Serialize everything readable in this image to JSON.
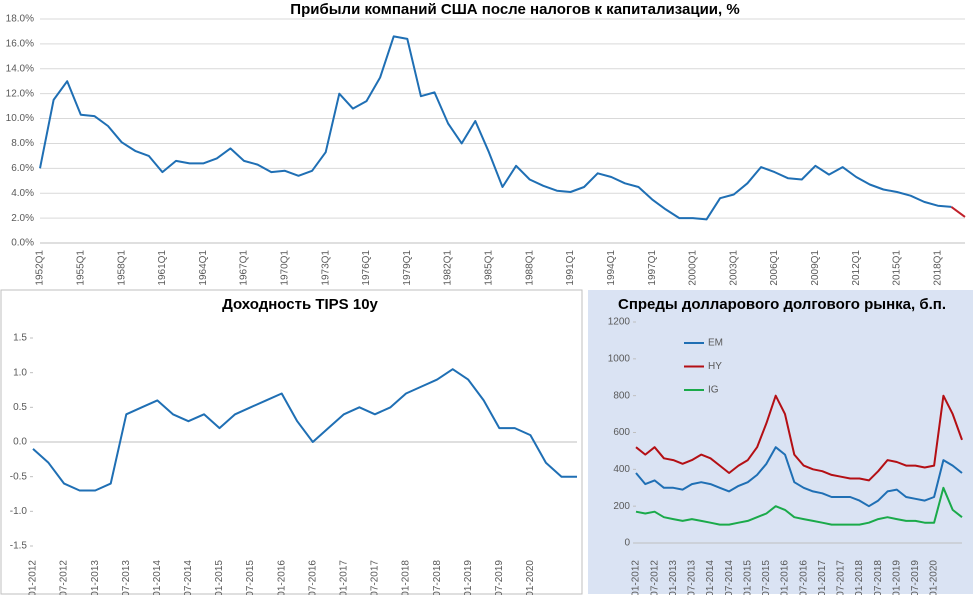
{
  "chart_data": [
    {
      "type": "line",
      "title": "Прибыли компаний США после налогов к капитализации, %",
      "categories": [
        "1952Q1",
        null,
        null,
        "1955Q1",
        null,
        null,
        "1958Q1",
        null,
        null,
        "1961Q1",
        null,
        null,
        "1964Q1",
        null,
        null,
        "1967Q1",
        null,
        null,
        "1970Q1",
        null,
        null,
        "1973Q1",
        null,
        null,
        "1976Q1",
        null,
        null,
        "1979Q1",
        null,
        null,
        "1982Q1",
        null,
        null,
        "1985Q1",
        null,
        null,
        "1988Q1",
        null,
        null,
        "1991Q1",
        null,
        null,
        "1994Q1",
        null,
        null,
        "1997Q1",
        null,
        null,
        "2000Q1",
        null,
        null,
        "2003Q1",
        null,
        null,
        "2006Q1",
        null,
        null,
        "2009Q1",
        null,
        null,
        "2012Q1",
        null,
        null,
        "2015Q1",
        null,
        null,
        "2018Q1",
        null,
        null
      ],
      "series": [
        {
          "color": "#1f6fb4",
          "values": [
            6.0,
            11.5,
            13.0,
            10.3,
            10.2,
            9.4,
            8.1,
            7.4,
            7.0,
            5.7,
            6.6,
            6.4,
            6.4,
            6.8,
            7.6,
            6.6,
            6.3,
            5.7,
            5.8,
            5.4,
            5.8,
            7.3,
            12.0,
            10.8,
            11.4,
            13.3,
            16.6,
            16.4,
            11.8,
            12.1,
            9.6,
            8.0,
            9.8,
            7.3,
            4.5,
            6.2,
            5.1,
            4.6,
            4.2,
            4.1,
            4.5,
            5.6,
            5.3,
            4.8,
            4.5,
            3.5,
            2.7,
            2.0,
            2.0,
            1.9,
            3.6,
            3.9,
            4.8,
            6.1,
            5.7,
            5.2,
            5.1,
            6.2,
            5.5,
            6.1,
            5.3,
            4.7,
            4.3,
            4.1,
            3.8,
            3.3,
            3.0,
            2.9,
            null
          ]
        },
        {
          "color": "#c0202a",
          "values": [
            null,
            null,
            null,
            null,
            null,
            null,
            null,
            null,
            null,
            null,
            null,
            null,
            null,
            null,
            null,
            null,
            null,
            null,
            null,
            null,
            null,
            null,
            null,
            null,
            null,
            null,
            null,
            null,
            null,
            null,
            null,
            null,
            null,
            null,
            null,
            null,
            null,
            null,
            null,
            null,
            null,
            null,
            null,
            null,
            null,
            null,
            null,
            null,
            null,
            null,
            null,
            null,
            null,
            null,
            null,
            null,
            null,
            null,
            null,
            null,
            null,
            null,
            null,
            null,
            null,
            null,
            null,
            2.9,
            2.1
          ]
        }
      ],
      "ylim": [
        0,
        18
      ],
      "yticks": [
        {
          "value": 0,
          "label": "0.0%"
        },
        {
          "value": 2,
          "label": "2.0%"
        },
        {
          "value": 4,
          "label": "4.0%"
        },
        {
          "value": 6,
          "label": "6.0%"
        },
        {
          "value": 8,
          "label": "8.0%"
        },
        {
          "value": 10,
          "label": "10.0%"
        },
        {
          "value": 12,
          "label": "12.0%"
        },
        {
          "value": 14,
          "label": "14.0%"
        },
        {
          "value": 16,
          "label": "16.0%"
        },
        {
          "value": 18,
          "label": "18.0%"
        }
      ],
      "grid": true
    },
    {
      "type": "line",
      "title": "Доходность TIPS 10y",
      "categories": [
        "01-2012",
        null,
        "07-2012",
        null,
        "01-2013",
        null,
        "07-2013",
        null,
        "01-2014",
        null,
        "07-2014",
        null,
        "01-2015",
        null,
        "07-2015",
        null,
        "01-2016",
        null,
        "07-2016",
        null,
        "01-2017",
        null,
        "07-2017",
        null,
        "01-2018",
        null,
        "07-2018",
        null,
        "01-2019",
        null,
        "07-2019",
        null,
        "01-2020",
        null,
        null,
        null
      ],
      "series": [
        {
          "color": "#1f6fb4",
          "values": [
            -0.1,
            -0.3,
            -0.6,
            -0.7,
            -0.7,
            -0.6,
            0.4,
            0.5,
            0.6,
            0.4,
            0.3,
            0.4,
            0.2,
            0.4,
            0.5,
            0.6,
            0.7,
            0.3,
            0.0,
            0.2,
            0.4,
            0.5,
            0.4,
            0.5,
            0.7,
            0.8,
            0.9,
            1.05,
            0.9,
            0.6,
            0.2,
            0.2,
            0.1,
            -0.3,
            -0.5,
            -0.5
          ]
        }
      ],
      "ylim": [
        -1.5,
        1.5
      ],
      "yticks": [
        -1.5,
        {
          "value": -1,
          "label": "-1.0"
        },
        -0.5,
        {
          "value": 0,
          "label": "0.0"
        },
        0.5,
        {
          "value": 1,
          "label": "1.0"
        },
        1.5
      ],
      "grid": false
    },
    {
      "type": "line",
      "title": "Спреды долларового долгового рынка, б.п.",
      "categories": [
        "01-2012",
        null,
        "07-2012",
        null,
        "01-2013",
        null,
        "07-2013",
        null,
        "01-2014",
        null,
        "07-2014",
        null,
        "01-2015",
        null,
        "07-2015",
        null,
        "01-2016",
        null,
        "07-2016",
        null,
        "01-2017",
        null,
        "07-2017",
        null,
        "01-2018",
        null,
        "07-2018",
        null,
        "01-2019",
        null,
        "07-2019",
        null,
        "01-2020",
        null,
        null,
        null
      ],
      "series": [
        {
          "name": "EM",
          "color": "#1f6fb4",
          "values": [
            380,
            320,
            340,
            300,
            300,
            290,
            320,
            330,
            320,
            300,
            280,
            310,
            330,
            370,
            430,
            520,
            480,
            330,
            300,
            280,
            270,
            250,
            250,
            250,
            230,
            200,
            230,
            280,
            290,
            250,
            240,
            230,
            250,
            450,
            420,
            380
          ]
        },
        {
          "name": "HY",
          "color": "#b40f14",
          "values": [
            520,
            480,
            520,
            460,
            450,
            430,
            450,
            480,
            460,
            420,
            380,
            420,
            450,
            520,
            650,
            800,
            700,
            480,
            420,
            400,
            390,
            370,
            360,
            350,
            350,
            340,
            390,
            450,
            440,
            420,
            420,
            410,
            420,
            800,
            700,
            560
          ]
        },
        {
          "name": "IG",
          "color": "#1aaa4a",
          "values": [
            170,
            160,
            170,
            140,
            130,
            120,
            130,
            120,
            110,
            100,
            100,
            110,
            120,
            140,
            160,
            200,
            180,
            140,
            130,
            120,
            110,
            100,
            100,
            100,
            100,
            110,
            130,
            140,
            130,
            120,
            120,
            110,
            110,
            300,
            180,
            140
          ]
        }
      ],
      "ylim": [
        0,
        1200
      ],
      "yticks": [
        0,
        200,
        400,
        600,
        800,
        1000,
        1200
      ],
      "grid": false,
      "legend": "upper-left"
    }
  ]
}
